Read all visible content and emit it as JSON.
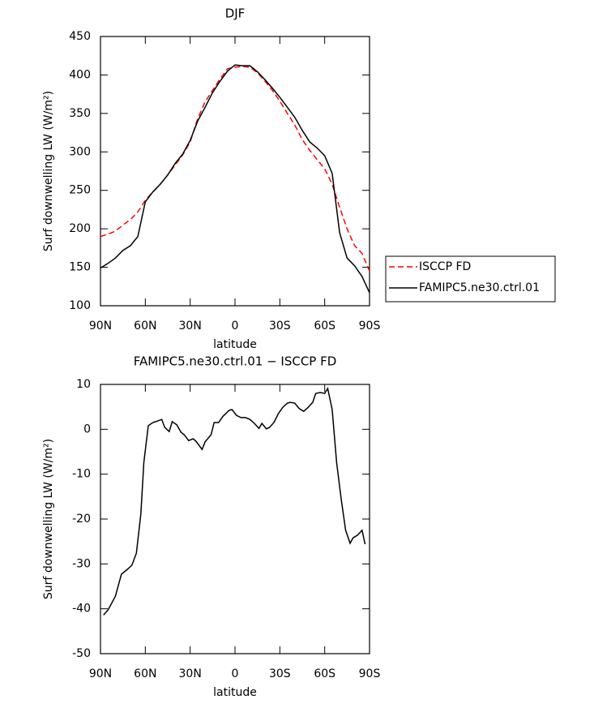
{
  "chart_data": [
    {
      "type": "line",
      "title": "DJF",
      "xlabel": "latitude",
      "ylabel": "Surf downwelling LW (W/m²)",
      "x": [
        90,
        85,
        80,
        75,
        70,
        65,
        60,
        55,
        50,
        45,
        40,
        35,
        30,
        25,
        20,
        15,
        10,
        5,
        0,
        -5,
        -10,
        -15,
        -20,
        -25,
        -30,
        -35,
        -40,
        -45,
        -50,
        -55,
        -60,
        -65,
        -70,
        -75,
        -80,
        -85,
        -90
      ],
      "series": [
        {
          "name": "ISCCP FD",
          "color": "#ff0000",
          "linestyle": "dashed",
          "values": [
            190,
            193,
            197,
            205,
            212,
            222,
            237,
            248,
            258,
            270,
            283,
            296,
            313,
            343,
            365,
            380,
            395,
            408,
            410,
            411,
            410,
            403,
            392,
            380,
            366,
            350,
            335,
            316,
            302,
            290,
            278,
            258,
            228,
            200,
            178,
            168,
            145
          ]
        },
        {
          "name": "FAMIPC5.ne30.ctrl.01",
          "color": "#000000",
          "linestyle": "solid",
          "values": [
            149,
            155,
            162,
            172,
            178,
            190,
            235,
            248,
            258,
            270,
            285,
            297,
            315,
            340,
            358,
            377,
            392,
            405,
            413,
            412,
            412,
            404,
            394,
            383,
            371,
            358,
            345,
            328,
            313,
            305,
            295,
            272,
            195,
            162,
            152,
            138,
            117
          ]
        }
      ],
      "xlim": [
        90,
        -90
      ],
      "xticks": [
        {
          "value": 90,
          "label": "90N"
        },
        {
          "value": 60,
          "label": "60N"
        },
        {
          "value": 30,
          "label": "30N"
        },
        0,
        {
          "value": -30,
          "label": "30S"
        },
        {
          "value": -60,
          "label": "60S"
        },
        {
          "value": -90,
          "label": "90S"
        }
      ],
      "ylim": [
        100,
        450
      ],
      "yticks": [
        100,
        150,
        200,
        250,
        300,
        350,
        400,
        450
      ],
      "legend": "right"
    },
    {
      "type": "line",
      "title": "FAMIPC5.ne30.ctrl.01 − ISCCP FD",
      "xlabel": "latitude",
      "ylabel": "Surf downwelling LW (W/m²)",
      "x": [
        88,
        85,
        80,
        76,
        72,
        69,
        66,
        63,
        61,
        58,
        55,
        53,
        49,
        47,
        44,
        42,
        39,
        36,
        34,
        31,
        28,
        26,
        22,
        20,
        16,
        14,
        11,
        8,
        4,
        2,
        -1,
        -4,
        -7,
        -10,
        -13,
        -16,
        -18,
        -21,
        -23,
        -26,
        -29,
        -32,
        -35,
        -37,
        -40,
        -43,
        -46,
        -49,
        -52,
        -54,
        -57,
        -60,
        -62,
        -65,
        -68,
        -71,
        -74,
        -77,
        -79,
        -82,
        -85,
        -87
      ],
      "series": [
        {
          "name": "FAMIPC5.ne30.ctrl.01 − ISCCP FD",
          "color": "#000000",
          "linestyle": "solid",
          "values": [
            -41.4,
            -40.3,
            -37.2,
            -32.3,
            -31.2,
            -30.3,
            -27.6,
            -18.9,
            -7.4,
            0.8,
            1.5,
            1.7,
            2.2,
            0.4,
            -0.5,
            1.7,
            1.0,
            -0.7,
            -1.2,
            -2.5,
            -2.1,
            -2.7,
            -4.5,
            -2.8,
            -1.2,
            1.5,
            1.5,
            2.9,
            4.2,
            4.4,
            3.1,
            2.6,
            2.6,
            2.2,
            1.3,
            0.2,
            1.3,
            0.1,
            0.4,
            1.5,
            3.5,
            4.9,
            5.8,
            6.0,
            5.8,
            4.6,
            4.0,
            4.9,
            6.0,
            8.0,
            8.2,
            8.0,
            9.1,
            4.4,
            -7.4,
            -15.5,
            -22.5,
            -25.4,
            -24.2,
            -23.6,
            -22.5,
            -25.6
          ]
        }
      ],
      "xlim": [
        90,
        -90
      ],
      "xticks": [
        {
          "value": 90,
          "label": "90N"
        },
        {
          "value": 60,
          "label": "60N"
        },
        {
          "value": 30,
          "label": "30N"
        },
        0,
        {
          "value": -30,
          "label": "30S"
        },
        {
          "value": -60,
          "label": "60S"
        },
        {
          "value": -90,
          "label": "90S"
        }
      ],
      "ylim": [
        -50,
        10
      ],
      "yticks": [
        -50,
        -40,
        -30,
        -20,
        -10,
        0,
        10
      ]
    }
  ]
}
